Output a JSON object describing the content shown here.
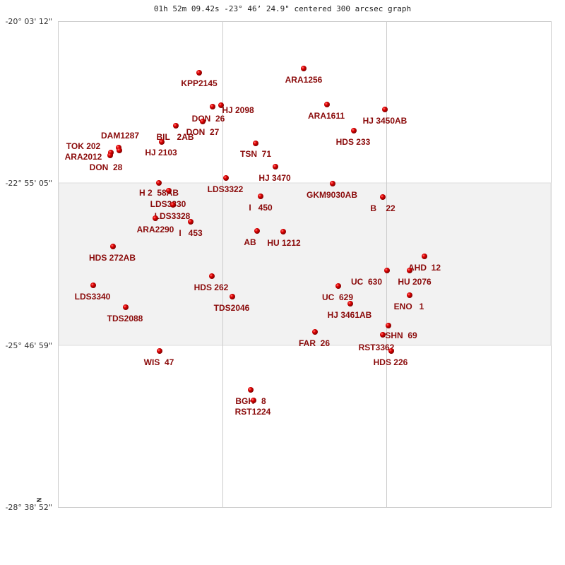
{
  "title": "01h 52m 09.42s -23° 46’ 24.9\" centered 300 arcsec graph",
  "dec_labels": [
    "-20° 03' 12\"",
    "-22° 55' 05\"",
    "-25° 46' 59\"",
    "-28° 38' 52\""
  ],
  "north_label": "N",
  "colors": {
    "star": "#e00000",
    "label": "#8a0a0a",
    "band": "#f2f2f2",
    "grid": "#cccccc"
  },
  "stars": [
    "KPP2145",
    "ARA1256",
    "DON  26",
    "HJ 2098",
    "DON  27",
    "BIL   2AB",
    "HJ 2103",
    "DAM1287",
    "TOK 202",
    "ARA2012",
    "DON  28",
    "TSN  71",
    "HJ 3470",
    "ARA1611",
    "HJ 3450AB",
    "HDS 233",
    "GKM9030AB",
    "B    22",
    "LDS3322",
    "I   450",
    "H 2  58AB",
    "LDS3330",
    "LDS3328",
    "ARA2290",
    "I   453",
    "AB",
    "HU 1212",
    "HDS 272AB",
    "LDS3340",
    "TDS2088",
    "HDS 262",
    "TDS2046",
    "AHD  12",
    "UC  630",
    "HU 2076",
    "ENO   1",
    "UC  629",
    "HJ 3461AB",
    "SHN  69",
    "FAR  26",
    "RST3362",
    "HDS 226",
    "WIS  47",
    "BGH   8",
    "RST1224"
  ]
}
